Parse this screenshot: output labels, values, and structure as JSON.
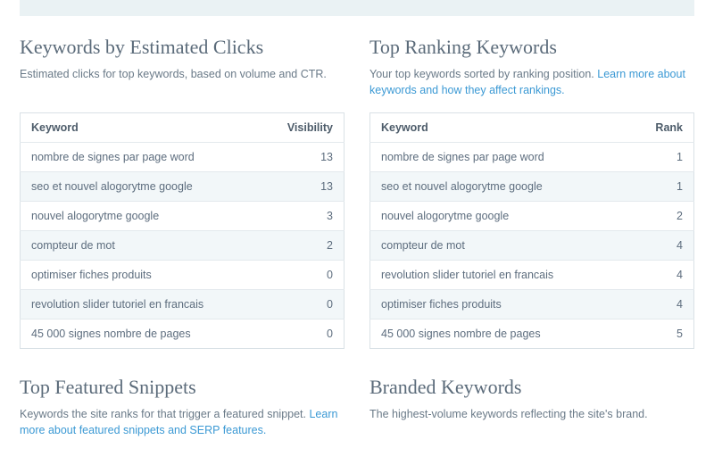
{
  "colors": {
    "band_bg": "#eaf2f4",
    "heading": "#5b6b7a",
    "text": "#5d6d7e",
    "link": "#3b99d4",
    "border": "#d9e1e6",
    "row_alt": "#f2f7f9"
  },
  "left_section": {
    "title": "Keywords by Estimated Clicks",
    "description": "Estimated clicks for top keywords, based on volume and CTR.",
    "table": {
      "col_keyword": "Keyword",
      "col_value": "Visibility",
      "rows": [
        {
          "keyword": "nombre de signes par page word",
          "value": "13"
        },
        {
          "keyword": "seo et nouvel alogorytme google",
          "value": "13"
        },
        {
          "keyword": "nouvel alogorytme google",
          "value": "3"
        },
        {
          "keyword": "compteur de mot",
          "value": "2"
        },
        {
          "keyword": "optimiser fiches produits",
          "value": "0"
        },
        {
          "keyword": "revolution slider tutoriel en francais",
          "value": "0"
        },
        {
          "keyword": "45 000 signes nombre de pages",
          "value": "0"
        }
      ]
    }
  },
  "right_section": {
    "title": "Top Ranking Keywords",
    "description_pre": "Your top keywords sorted by ranking position. ",
    "description_link": "Learn more about keywords and how they affect rankings.",
    "table": {
      "col_keyword": "Keyword",
      "col_value": "Rank",
      "rows": [
        {
          "keyword": "nombre de signes par page word",
          "value": "1"
        },
        {
          "keyword": "seo et nouvel alogorytme google",
          "value": "1"
        },
        {
          "keyword": "nouvel alogorytme google",
          "value": "2"
        },
        {
          "keyword": "compteur de mot",
          "value": "4"
        },
        {
          "keyword": "revolution slider tutoriel en francais",
          "value": "4"
        },
        {
          "keyword": "optimiser fiches produits",
          "value": "4"
        },
        {
          "keyword": "45 000 signes nombre de pages",
          "value": "5"
        }
      ]
    }
  },
  "bottom_left": {
    "title": "Top Featured Snippets",
    "description_pre": "Keywords the site ranks for that trigger a featured snippet. ",
    "description_link": "Learn more about featured snippets and SERP features."
  },
  "bottom_right": {
    "title": "Branded Keywords",
    "description": "The highest-volume keywords reflecting the site's brand."
  }
}
